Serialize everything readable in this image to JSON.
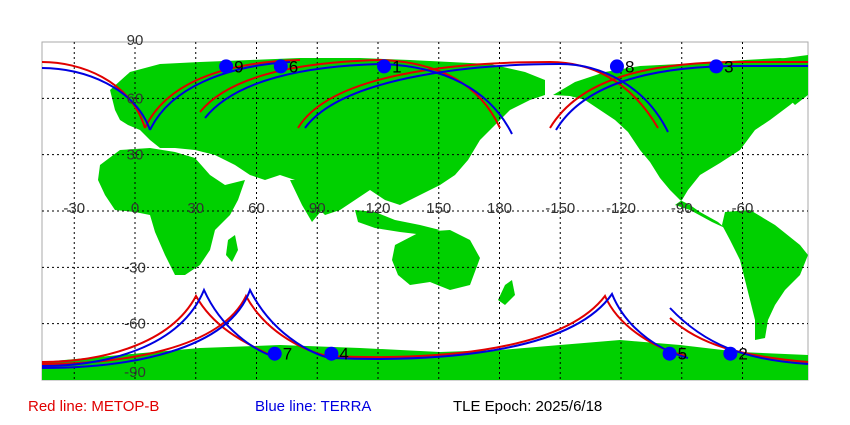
{
  "colors": {
    "ocean": "#ffffff",
    "land": "#00d000",
    "grid": "#000000",
    "metop_b": "#e00000",
    "terra": "#0000e0",
    "marker": "#0000ff"
  },
  "map": {
    "projection": "equirectangular",
    "center_lon": 0,
    "lon_tick_labels": [
      "-30",
      "0",
      "30",
      "60",
      "90",
      "120",
      "150",
      "180",
      "-150",
      "-120",
      "-90",
      "-60"
    ],
    "lat_tick_labels": [
      "90",
      "60",
      "30",
      "-30",
      "-60",
      "-90"
    ],
    "markers": [
      {
        "label": "9",
        "lon": 45,
        "lat": 77
      },
      {
        "label": "6",
        "lon": 72,
        "lat": 77
      },
      {
        "label": "1",
        "lon": 123,
        "lat": 77
      },
      {
        "label": "8",
        "lon": -122,
        "lat": 77
      },
      {
        "label": "3",
        "lon": -73,
        "lat": 77
      },
      {
        "label": "7",
        "lon": 69,
        "lat": -76
      },
      {
        "label": "4",
        "lon": 97,
        "lat": -76
      },
      {
        "label": "5",
        "lon": -96,
        "lat": -76
      },
      {
        "label": "2",
        "lon": -66,
        "lat": -76
      }
    ]
  },
  "legend": {
    "red_label": "Red line: METOP-B",
    "blue_label": "Blue line: TERRA",
    "epoch_label": "TLE Epoch: 2025/6/18"
  }
}
